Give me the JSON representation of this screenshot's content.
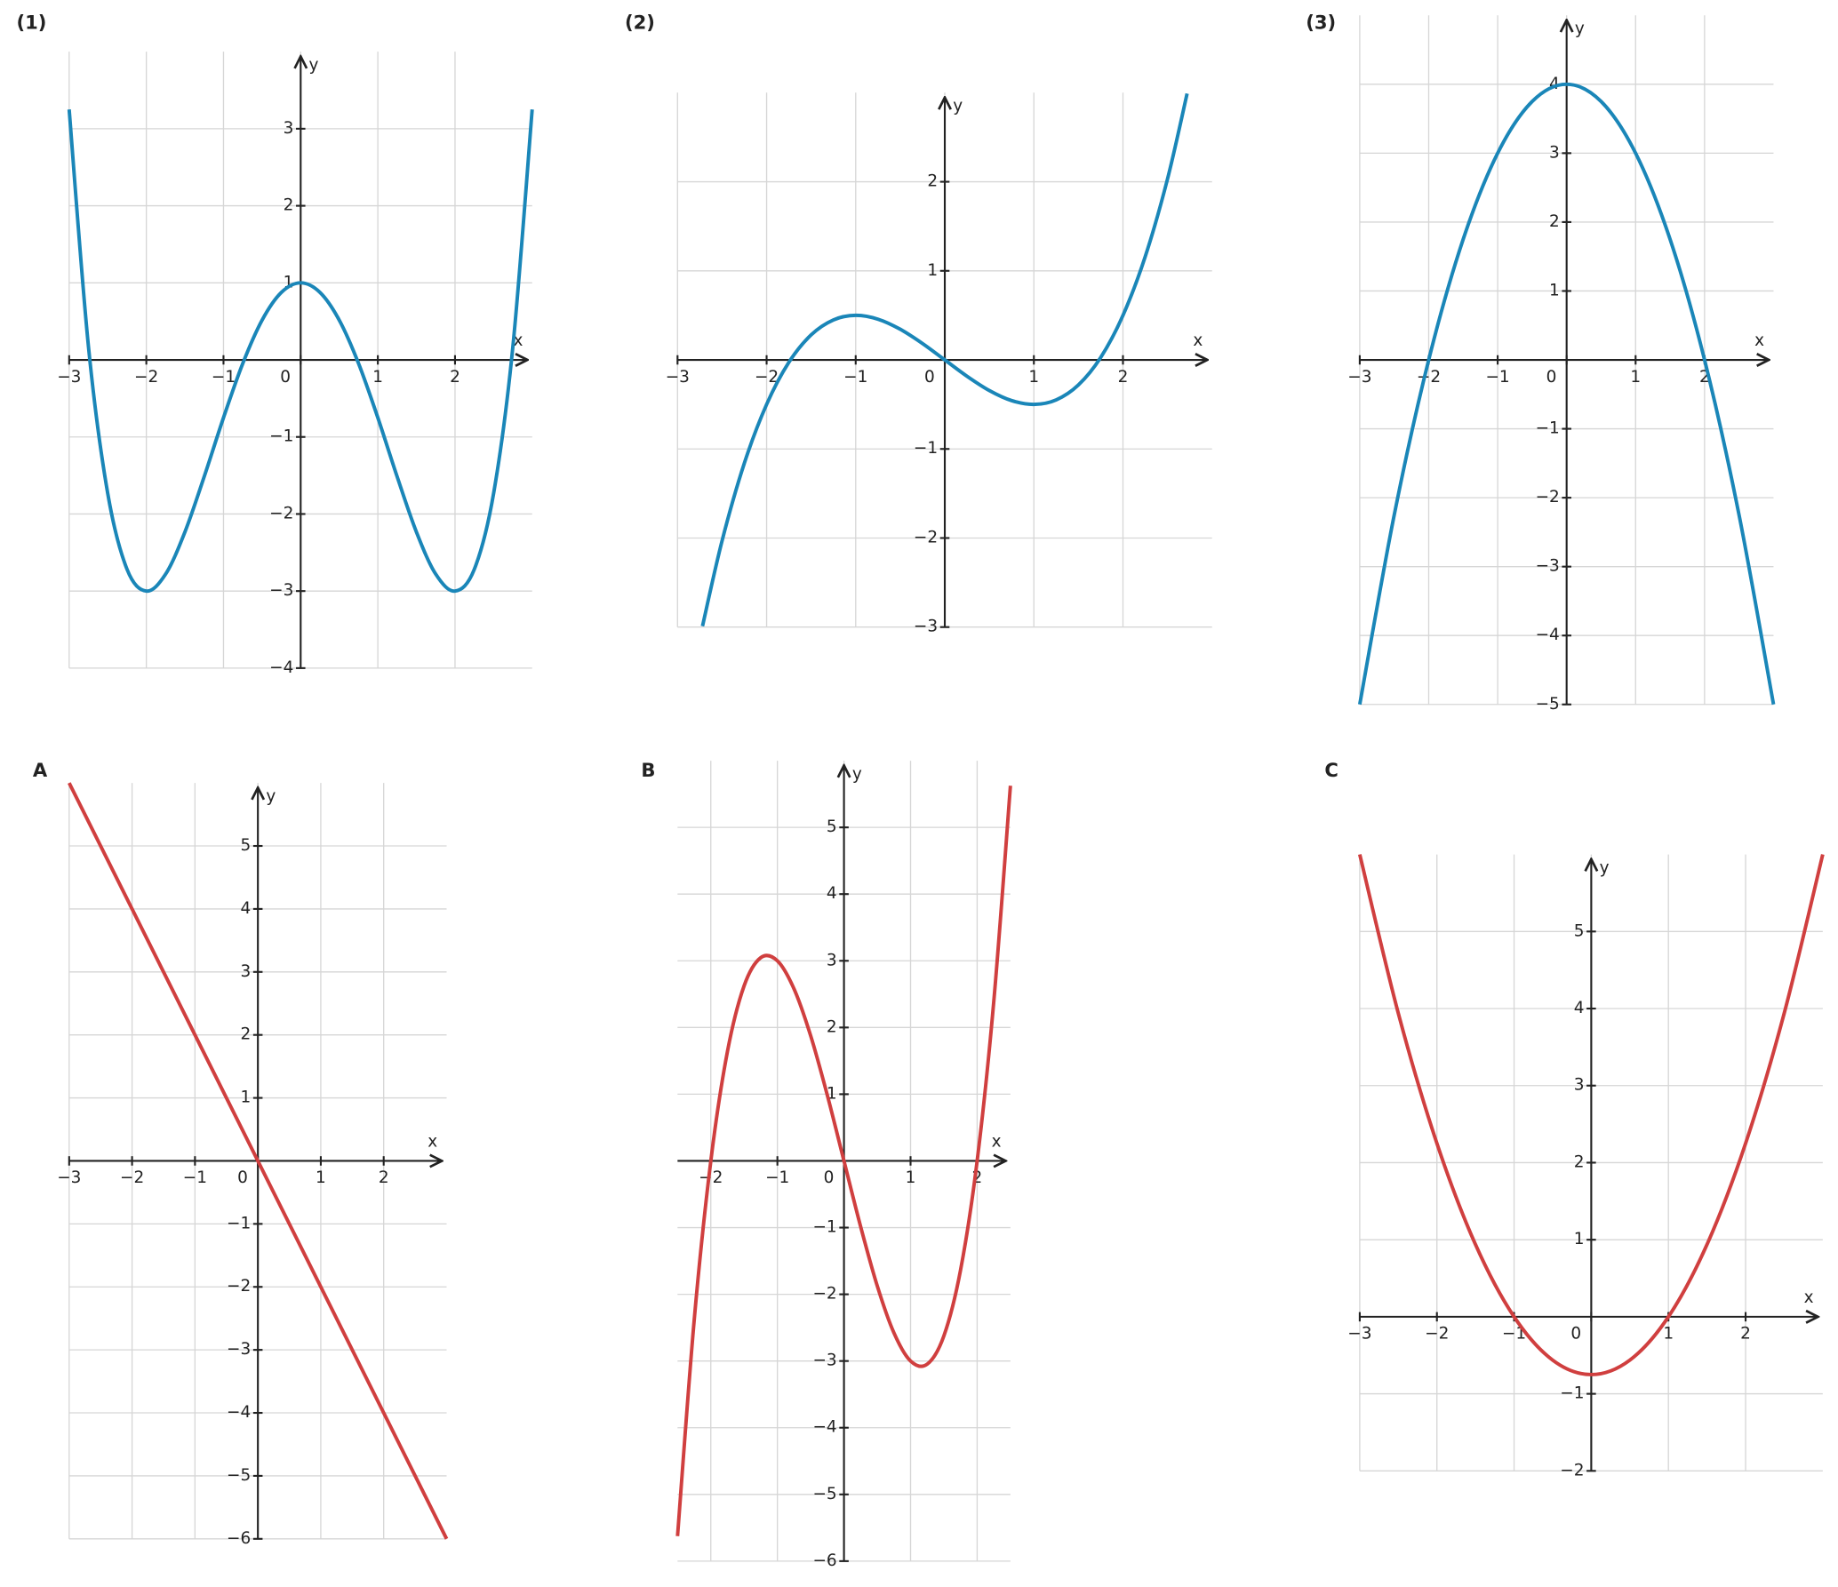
{
  "chart_data": [
    {
      "type": "line",
      "title": "(1)",
      "x_label": "x",
      "y_label": "y",
      "color": "#1a86b8",
      "grid": true,
      "x": [
        -3,
        -2.75,
        -2.5,
        -2.25,
        -2,
        -1.75,
        -1.5,
        -1.25,
        -1,
        -0.75,
        -0.5,
        -0.25,
        0,
        0.25,
        0.5,
        0.75,
        1,
        1.25,
        1.5,
        1.75,
        2,
        2.25,
        2.5,
        2.75,
        3
      ],
      "values": [
        3.25,
        0.173,
        -1.734,
        -2.718,
        -3,
        -2.78,
        -2.234,
        -1.515,
        -0.75,
        -0.046,
        0.516,
        0.876,
        1,
        0.876,
        0.516,
        -0.046,
        -0.75,
        -1.515,
        -2.234,
        -2.78,
        -3,
        -2.718,
        -1.734,
        0.173,
        3.25
      ],
      "xlim": [
        -3,
        3
      ],
      "ylim": [
        -4,
        4
      ],
      "xticks": [
        {
          "value": -3,
          "label": "−3"
        },
        {
          "value": -2,
          "label": "−2"
        },
        {
          "value": -1,
          "label": "−1"
        },
        0,
        1,
        2
      ],
      "yticks": [
        {
          "value": -4,
          "label": "−4"
        },
        {
          "value": -3,
          "label": "−3"
        },
        {
          "value": -2,
          "label": "−2"
        },
        {
          "value": -1,
          "label": "−1"
        },
        1,
        2,
        3
      ]
    },
    {
      "type": "line",
      "title": "(2)",
      "x_label": "x",
      "y_label": "y",
      "color": "#1a86b8",
      "grid": true,
      "x": [
        -2.72,
        -2.5,
        -2.25,
        -2,
        -1.75,
        -1.5,
        -1.25,
        -1,
        -0.75,
        -0.5,
        -0.25,
        0,
        0.25,
        0.5,
        0.75,
        1,
        1.25,
        1.5,
        1.75,
        2,
        2.25,
        2.5,
        2.72
      ],
      "values": [
        -2.99,
        -2.031,
        -1.16,
        -0.5,
        -0.027,
        0.281,
        0.449,
        0.5,
        0.457,
        0.344,
        0.184,
        0,
        -0.184,
        -0.344,
        -0.457,
        -0.5,
        -0.449,
        -0.281,
        0.027,
        0.5,
        1.16,
        2.031,
        2.99
      ],
      "xlim": [
        -3,
        3
      ],
      "ylim": [
        -3,
        3
      ],
      "xticks": [
        {
          "value": -3,
          "label": "−3"
        },
        {
          "value": -2,
          "label": "−2"
        },
        {
          "value": -1,
          "label": "−1"
        },
        0,
        1,
        2
      ],
      "yticks": [
        {
          "value": -3,
          "label": "−3"
        },
        {
          "value": -2,
          "label": "−2"
        },
        {
          "value": -1,
          "label": "−1"
        },
        1,
        2
      ]
    },
    {
      "type": "line",
      "title": "(3)",
      "x_label": "x",
      "y_label": "y",
      "color": "#1a86b8",
      "grid": true,
      "x": [
        -3,
        -2.5,
        -2,
        -1.5,
        -1,
        -0.5,
        0,
        0.5,
        1,
        1.5,
        2,
        2.5,
        3
      ],
      "values": [
        -5,
        -2.25,
        0,
        1.75,
        3,
        3.75,
        4,
        3.75,
        3,
        1.75,
        0,
        -2.25,
        -5
      ],
      "xlim": [
        -3,
        3
      ],
      "ylim": [
        -5,
        5
      ],
      "xticks": [
        {
          "value": -3,
          "label": "−3"
        },
        {
          "value": -2,
          "label": "−2"
        },
        {
          "value": -1,
          "label": "−1"
        },
        0,
        1,
        2
      ],
      "yticks": [
        {
          "value": -5,
          "label": "−5"
        },
        {
          "value": -4,
          "label": "−4"
        },
        {
          "value": -3,
          "label": "−3"
        },
        {
          "value": -2,
          "label": "−2"
        },
        {
          "value": -1,
          "label": "−1"
        },
        1,
        2,
        3,
        4
      ]
    },
    {
      "type": "line",
      "title": "A",
      "x_label": "x",
      "y_label": "y",
      "color": "#d03f3f",
      "grid": true,
      "x": [
        -3,
        0,
        3
      ],
      "values": [
        6,
        0,
        -6
      ],
      "xlim": [
        -3,
        3
      ],
      "ylim": [
        -6,
        6
      ],
      "xticks": [
        {
          "value": -3,
          "label": "−3"
        },
        {
          "value": -2,
          "label": "−2"
        },
        {
          "value": -1,
          "label": "−1"
        },
        0,
        1,
        2
      ],
      "yticks": [
        {
          "value": -6,
          "label": "−6"
        },
        {
          "value": -5,
          "label": "−5"
        },
        {
          "value": -4,
          "label": "−4"
        },
        {
          "value": -3,
          "label": "−3"
        },
        {
          "value": -2,
          "label": "−2"
        },
        {
          "value": -1,
          "label": "−1"
        },
        1,
        2,
        3,
        4,
        5
      ]
    },
    {
      "type": "line",
      "title": "B",
      "x_label": "x",
      "y_label": "y",
      "color": "#d03f3f",
      "grid": true,
      "x": [
        -2.5,
        -2.25,
        -2,
        -1.75,
        -1.5,
        -1.25,
        -1,
        -0.75,
        -0.5,
        -0.25,
        0,
        0.25,
        0.5,
        0.75,
        1,
        1.25,
        1.5,
        1.75,
        2,
        2.25,
        2.5
      ],
      "values": [
        -5.625,
        -2.391,
        0,
        1.641,
        2.625,
        3.047,
        3,
        2.578,
        1.875,
        0.984,
        0,
        -0.984,
        -1.875,
        -2.578,
        -3,
        -3.047,
        -2.625,
        -1.641,
        0,
        2.391,
        5.625
      ],
      "xlim": [
        -2.5,
        2.5
      ],
      "ylim": [
        -6,
        6
      ],
      "xticks": [
        {
          "value": -2,
          "label": "−2"
        },
        {
          "value": -1,
          "label": "−1"
        },
        0,
        1,
        2
      ],
      "yticks": [
        {
          "value": -6,
          "label": "−6"
        },
        {
          "value": -5,
          "label": "−5"
        },
        {
          "value": -4,
          "label": "−4"
        },
        {
          "value": -3,
          "label": "−3"
        },
        {
          "value": -2,
          "label": "−2"
        },
        {
          "value": -1,
          "label": "−1"
        },
        1,
        2,
        3,
        4,
        5
      ]
    },
    {
      "type": "line",
      "title": "C",
      "x_label": "x",
      "y_label": "y",
      "color": "#d03f3f",
      "grid": true,
      "x": [
        -3,
        -2.5,
        -2,
        -1.5,
        -1,
        -0.5,
        0,
        0.5,
        1,
        1.5,
        2,
        2.5,
        3
      ],
      "values": [
        6,
        3.9375,
        2.25,
        0.9375,
        0,
        -0.5625,
        -0.75,
        -0.5625,
        0,
        0.9375,
        2.25,
        3.9375,
        6
      ],
      "xlim": [
        -3,
        3
      ],
      "ylim": [
        -2,
        6
      ],
      "xticks": [
        {
          "value": -3,
          "label": "−3"
        },
        {
          "value": -2,
          "label": "−2"
        },
        {
          "value": -1,
          "label": "−1"
        },
        0,
        1,
        2
      ],
      "yticks": [
        {
          "value": -2,
          "label": "−2"
        },
        {
          "value": -1,
          "label": "−1"
        },
        1,
        2,
        3,
        4,
        5
      ]
    }
  ]
}
